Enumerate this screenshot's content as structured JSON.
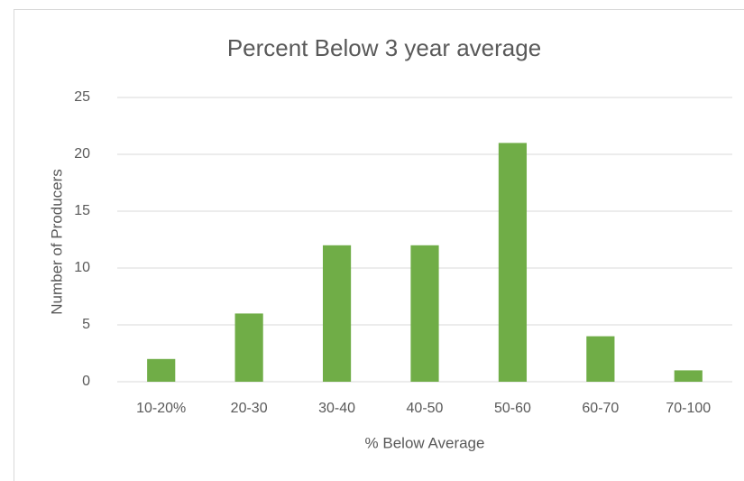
{
  "chart_data": {
    "type": "bar",
    "title": "Percent Below 3 year average",
    "x_label": "% Below Average",
    "y_label": "Number of Producers",
    "categories": [
      "10-20%",
      "20-30",
      "30-40",
      "40-50",
      "50-60",
      "60-70",
      "70-100"
    ],
    "values": [
      2,
      6,
      12,
      12,
      21,
      4,
      1
    ],
    "color": "#70ad47",
    "ylim": [
      0,
      25
    ],
    "yticks": [
      0,
      5,
      10,
      15,
      20,
      25
    ],
    "grid": true
  }
}
